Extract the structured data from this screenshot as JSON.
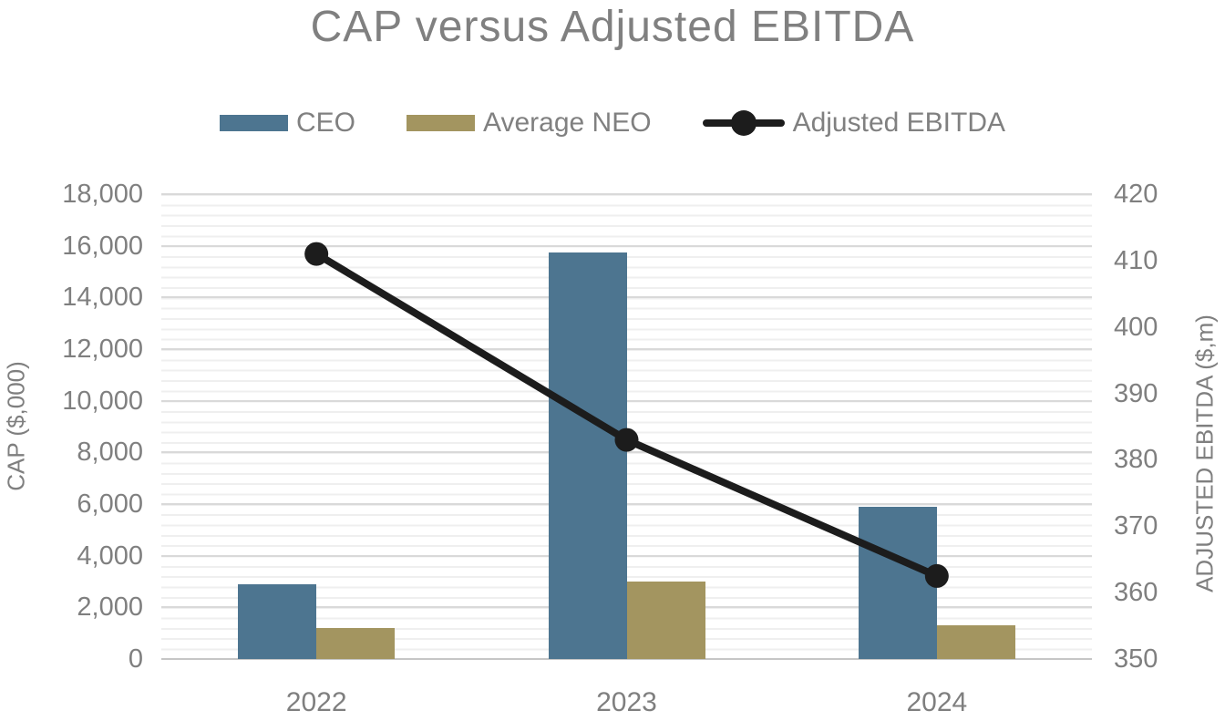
{
  "title": "CAP versus Adjusted EBITDA",
  "colors": {
    "ceo_bar": "#4D7590",
    "neo_bar": "#A39560",
    "ebitda_line": "#1C1C1C",
    "title_text": "#808080",
    "tick_text": "#7F7F7F",
    "major_grid": "#D9D9D9",
    "minor_grid": "#EFEFEF",
    "axis_baseline": "#C6C6C6"
  },
  "legend": {
    "items": [
      {
        "label": "CEO",
        "type": "bar",
        "color": "#4D7590"
      },
      {
        "label": "Average NEO",
        "type": "bar",
        "color": "#A39560"
      },
      {
        "label": "Adjusted EBITDA",
        "type": "line",
        "color": "#1C1C1C"
      }
    ]
  },
  "left_axis": {
    "title": "CAP ($,000)",
    "min": 0,
    "max": 18000,
    "tick_step": 2000,
    "tick_values": [
      0,
      2000,
      4000,
      6000,
      8000,
      10000,
      12000,
      14000,
      16000,
      18000
    ],
    "tick_labels": [
      "0",
      "2,000",
      "4,000",
      "6,000",
      "8,000",
      "10,000",
      "12,000",
      "14,000",
      "16,000",
      "18,000"
    ]
  },
  "right_axis": {
    "title": "ADJUSTED EBITDA ($,m)",
    "min": 350,
    "max": 420,
    "tick_step": 10,
    "tick_values": [
      350,
      360,
      370,
      380,
      390,
      400,
      410,
      420
    ],
    "tick_labels": [
      "350",
      "360",
      "370",
      "380",
      "390",
      "400",
      "410",
      "420"
    ]
  },
  "chart_data": {
    "type": "bar+line combo",
    "title": "CAP versus Adjusted EBITDA",
    "categories": [
      "2022",
      "2023",
      "2024"
    ],
    "series": [
      {
        "name": "CEO",
        "type": "bar",
        "axis": "left",
        "color": "#4D7590",
        "values": [
          2900,
          15750,
          5900
        ]
      },
      {
        "name": "Average NEO",
        "type": "bar",
        "axis": "left",
        "color": "#A39560",
        "values": [
          1200,
          3000,
          1300
        ]
      },
      {
        "name": "Adjusted EBITDA",
        "type": "line",
        "axis": "right",
        "color": "#1C1C1C",
        "values": [
          411,
          383,
          362.5
        ]
      }
    ],
    "left_ylabel": "CAP ($,000)",
    "right_ylabel": "ADJUSTED EBITDA ($,m)",
    "left_ylim": [
      0,
      18000
    ],
    "right_ylim": [
      350,
      420
    ],
    "left_minor_unit": 400,
    "grid": true,
    "legend_position": "top"
  }
}
